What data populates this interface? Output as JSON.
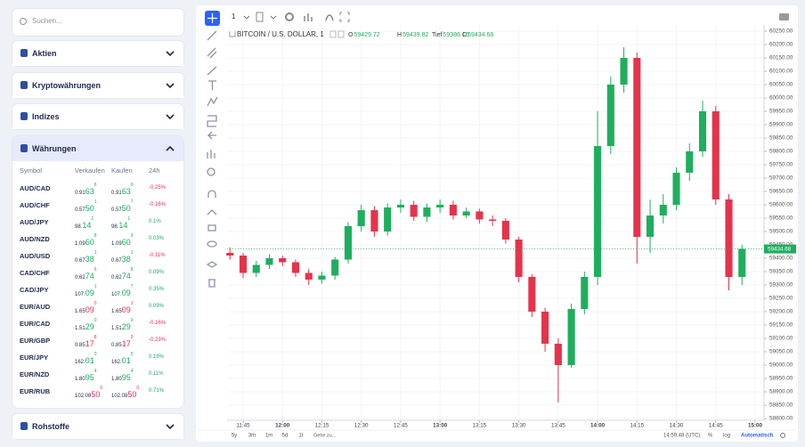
{
  "sidebar": {
    "search": "Suchen...",
    "sections": [
      "Aktien",
      "Kryptowährungen",
      "Indizes",
      "Währungen",
      "Rohstoffe"
    ],
    "table": {
      "columns": [
        "Symbol",
        "Verkaufen",
        "Kaufen",
        "24h"
      ],
      "rows": [
        {
          "symbol": "AUD/CAD",
          "sell": [
            "0.91",
            "63",
            "6"
          ],
          "buy": [
            "0.91",
            "63",
            "9"
          ],
          "change": "-0.25%",
          "color": "#19ad5b"
        },
        {
          "symbol": "AUD/CHF",
          "sell": [
            "0.57",
            "50",
            "1"
          ],
          "buy": [
            "0.57",
            "50",
            "7"
          ],
          "change": "-0.16%",
          "color": "#19ad5b"
        },
        {
          "symbol": "AUD/JPY",
          "sell": [
            "98.",
            "14",
            "1"
          ],
          "buy": [
            "98.",
            "14",
            "1"
          ],
          "change": "0.1%",
          "color": "#19ad5b"
        },
        {
          "symbol": "AUD/NZD",
          "sell": [
            "1.09",
            "60",
            "8"
          ],
          "buy": [
            "1.09",
            "60",
            "9"
          ],
          "change": "0.03%",
          "color": "#19ad5b"
        },
        {
          "symbol": "AUD/USD",
          "sell": [
            "0.67",
            "38",
            "1"
          ],
          "buy": [
            "0.67",
            "38",
            "1"
          ],
          "change": "-0.11%",
          "color": "#19ad5b"
        },
        {
          "symbol": "CAD/CHF",
          "sell": [
            "0.62",
            "74",
            "6"
          ],
          "buy": [
            "0.62",
            "74",
            "8"
          ],
          "change": "0.09%",
          "color": "#19ad5b"
        },
        {
          "symbol": "CAD/JPY",
          "sell": [
            "107.",
            "09",
            "1"
          ],
          "buy": [
            "107.",
            "09",
            "7"
          ],
          "change": "0.35%",
          "color": "#19ad5b"
        },
        {
          "symbol": "EUR/AUD",
          "sell": [
            "1.65",
            "09",
            "0"
          ],
          "buy": [
            "1.65",
            "09",
            "1"
          ],
          "change": "0.09%",
          "color": "#e5334b"
        },
        {
          "symbol": "EUR/CAD",
          "sell": [
            "1.51",
            "29",
            "0"
          ],
          "buy": [
            "1.51",
            "29",
            "0"
          ],
          "change": "-0.16%",
          "color": "#19ad5b"
        },
        {
          "symbol": "EUR/GBP",
          "sell": [
            "0.85",
            "17",
            "8"
          ],
          "buy": [
            "0.85",
            "17",
            "9"
          ],
          "change": "-0.23%",
          "color": "#e5334b"
        },
        {
          "symbol": "EUR/JPY",
          "sell": [
            "162.",
            "01",
            "0"
          ],
          "buy": [
            "162.",
            "01",
            "5"
          ],
          "change": "0.19%",
          "color": "#19ad5b"
        },
        {
          "symbol": "EUR/NZD",
          "sell": [
            "1.80",
            "95",
            "4"
          ],
          "buy": [
            "1.80",
            "95",
            "4"
          ],
          "change": "0.11%",
          "color": "#19ad5b"
        },
        {
          "symbol": "EUR/RUB",
          "sell": [
            "102.08",
            "50",
            "0"
          ],
          "buy": [
            "102.08",
            "50",
            "0"
          ],
          "change": "0.71%",
          "color": "#e5334b"
        }
      ]
    }
  },
  "chart": {
    "type": "candlestick",
    "interval": "1",
    "instrument": "BITCOIN / U.S. DOLLAR, 1",
    "header": {
      "labels": [
        "O",
        "H",
        "Tief",
        "C"
      ],
      "values": [
        59429.72,
        59439.82,
        59386.16,
        59434.68
      ]
    },
    "up_color": "#1fae5e",
    "down_color": "#e5334b",
    "x": [
      "11:40",
      "11:45",
      "11:50",
      "11:55",
      "12:00",
      "12:05",
      "12:10",
      "12:15",
      "12:20",
      "12:25",
      "12:30",
      "12:35",
      "12:40",
      "12:45",
      "12:50",
      "12:55",
      "13:00",
      "13:05",
      "13:10",
      "13:15",
      "13:20",
      "13:25",
      "13:30",
      "13:35",
      "13:40",
      "13:45",
      "13:50",
      "13:55",
      "14:00",
      "14:05",
      "14:10",
      "14:15",
      "14:20",
      "14:25",
      "14:30",
      "14:35",
      "14:40",
      "14:45",
      "14:50",
      "14:55"
    ],
    "open": [
      59420,
      59410,
      59345,
      59375,
      59400,
      59385,
      59345,
      59320,
      59335,
      59395,
      59520,
      59580,
      59500,
      59590,
      59600,
      59555,
      59590,
      59600,
      59560,
      59575,
      59545,
      59540,
      59470,
      59330,
      59200,
      59080,
      59000,
      59210,
      59330,
      59820,
      60050,
      60150,
      59480,
      59560,
      59600,
      59720,
      59800,
      59950,
      59620,
      59330
    ],
    "high": [
      59440,
      59420,
      59390,
      59415,
      59410,
      59395,
      59360,
      59350,
      59405,
      59535,
      59600,
      59595,
      59605,
      59620,
      59615,
      59605,
      59620,
      59615,
      59590,
      59585,
      59560,
      59550,
      59480,
      59340,
      59215,
      59100,
      59230,
      59350,
      59950,
      60080,
      60190,
      60170,
      59620,
      59640,
      59740,
      59830,
      59990,
      59970,
      59640,
      59450
    ],
    "low": [
      59395,
      59325,
      59330,
      59360,
      59370,
      59330,
      59300,
      59305,
      59320,
      59380,
      59500,
      59480,
      59485,
      59570,
      59540,
      59535,
      59570,
      59545,
      59550,
      59530,
      59520,
      59455,
      59310,
      59180,
      59050,
      58860,
      58990,
      59190,
      59300,
      59790,
      60020,
      59380,
      59420,
      59530,
      59580,
      59690,
      59780,
      59600,
      59280,
      59300
    ],
    "close": [
      59410,
      59345,
      59375,
      59400,
      59385,
      59345,
      59320,
      59335,
      59395,
      59520,
      59580,
      59500,
      59590,
      59600,
      59555,
      59590,
      59600,
      59560,
      59575,
      59545,
      59540,
      59470,
      59330,
      59200,
      59080,
      59000,
      59210,
      59330,
      59820,
      60050,
      60150,
      59480,
      59560,
      59600,
      59720,
      59800,
      59950,
      59620,
      59330,
      59435
    ],
    "ylim": [
      58800,
      60250
    ],
    "yticks": [
      {
        "value": 58800,
        "label": "58800.00"
      },
      {
        "value": 58850,
        "label": "58850.00"
      },
      {
        "value": 58900,
        "label": "58900.00"
      },
      {
        "value": 58950,
        "label": "58950.00"
      },
      {
        "value": 59000,
        "label": "59000.00"
      },
      {
        "value": 59050,
        "label": "59050.00"
      },
      {
        "value": 59100,
        "label": "59100.00"
      },
      {
        "value": 59150,
        "label": "59150.00"
      },
      {
        "value": 59200,
        "label": "59200.00"
      },
      {
        "value": 59250,
        "label": "59250.00"
      },
      {
        "value": 59300,
        "label": "59300.00"
      },
      {
        "value": 59350,
        "label": "59350.00"
      },
      {
        "value": 59400,
        "label": "59400.00"
      },
      {
        "value": 59450,
        "label": "59450.00"
      },
      {
        "value": 59500,
        "label": "59500.00"
      },
      {
        "value": 59550,
        "label": "59550.00"
      },
      {
        "value": 59600,
        "label": "59600.00"
      },
      {
        "value": 59650,
        "label": "59650.00"
      },
      {
        "value": 59700,
        "label": "59700.00"
      },
      {
        "value": 59750,
        "label": "59750.00"
      },
      {
        "value": 59800,
        "label": "59800.00"
      },
      {
        "value": 59850,
        "label": "59850.00"
      },
      {
        "value": 59900,
        "label": "59900.00"
      },
      {
        "value": 59950,
        "label": "59950.00"
      },
      {
        "value": 60000,
        "label": "60000.00"
      },
      {
        "value": 60050,
        "label": "60050.00"
      },
      {
        "value": 60100,
        "label": "60100.00"
      },
      {
        "value": 60150,
        "label": "60150.00"
      },
      {
        "value": 60200,
        "label": "60200.00"
      },
      {
        "value": 60250,
        "label": "60250.00"
      }
    ],
    "xticks": [
      "11:45",
      "12:00",
      "12:15",
      "12:30",
      "12:45",
      "13:00",
      "13:15",
      "13:30",
      "13:45",
      "14:00",
      "14:15",
      "14:30",
      "14:45",
      "15:00"
    ],
    "grid": true,
    "timeframes": [
      "5y",
      "3m",
      "1m",
      "5d",
      "1t"
    ],
    "goto": "Gehe zu...",
    "clock": "14:59:48 (UTC)",
    "percent": "%",
    "log": "log",
    "auto": "Automatisch"
  }
}
